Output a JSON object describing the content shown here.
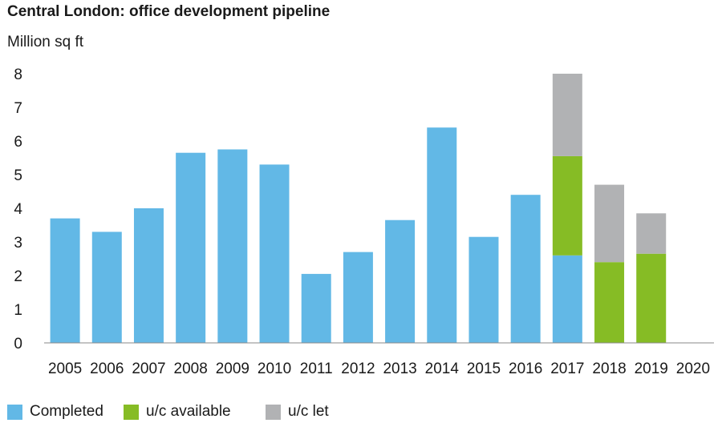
{
  "chart_data": {
    "type": "bar",
    "stacked": true,
    "title": "Central London: office development pipeline",
    "ylabel": "Million sq ft",
    "xlabel": "",
    "ylim": [
      0,
      8
    ],
    "yticks": [
      0,
      1,
      2,
      3,
      4,
      5,
      6,
      7,
      8
    ],
    "grid": false,
    "legend_position": "bottom-left",
    "categories": [
      "2005",
      "2006",
      "2007",
      "2008",
      "2009",
      "2010",
      "2011",
      "2012",
      "2013",
      "2014",
      "2015",
      "2016",
      "2017",
      "2018",
      "2019",
      "2020"
    ],
    "series": [
      {
        "name": "Completed",
        "color": "#62b8e6",
        "values": [
          3.7,
          3.3,
          4.0,
          5.65,
          5.75,
          5.3,
          2.05,
          2.7,
          3.65,
          6.4,
          3.15,
          4.4,
          2.6,
          0,
          0,
          0
        ]
      },
      {
        "name": "u/c available",
        "color": "#86bc25",
        "values": [
          0,
          0,
          0,
          0,
          0,
          0,
          0,
          0,
          0,
          0,
          0,
          0,
          2.95,
          2.4,
          2.65,
          0
        ]
      },
      {
        "name": "u/c let",
        "color": "#b1b2b4",
        "values": [
          0,
          0,
          0,
          0,
          0,
          0,
          0,
          0,
          0,
          0,
          0,
          0,
          2.45,
          2.3,
          1.2,
          0
        ]
      }
    ]
  }
}
